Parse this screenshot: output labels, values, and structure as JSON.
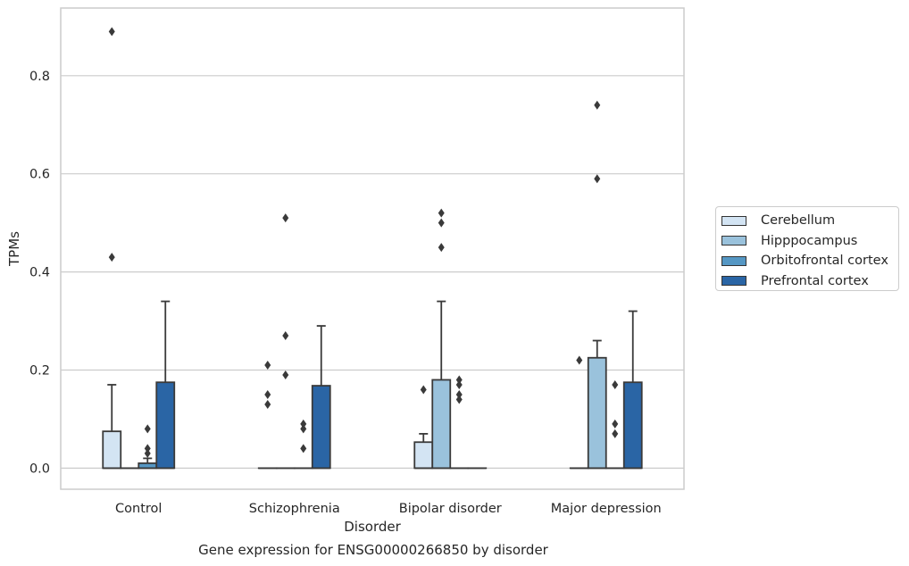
{
  "chart_data": {
    "type": "box",
    "title": "",
    "caption": "Gene expression for ENSG00000266850 by disorder",
    "xlabel": "Disorder",
    "ylabel": "TPMs",
    "ylim": [
      -0.043,
      0.938
    ],
    "yticks": [
      0.0,
      0.2,
      0.4,
      0.6,
      0.8
    ],
    "ytick_labels": [
      "0.0",
      "0.2",
      "0.4",
      "0.6",
      "0.8"
    ],
    "categories": [
      "Control",
      "Schizophrenia",
      "Bipolar disorder",
      "Major depression"
    ],
    "grid": "horizontal",
    "legend_position": "right",
    "series": [
      {
        "name": "Cerebellum",
        "color": "#d3e4f3",
        "boxes": [
          {
            "min": 0,
            "q1": 0,
            "median": 0,
            "q3": 0.075,
            "max": 0.17,
            "outliers": [
              0.43,
              0.89
            ]
          },
          {
            "min": 0,
            "q1": 0,
            "median": 0,
            "q3": 0,
            "max": 0,
            "outliers": [
              0.13,
              0.15,
              0.21
            ]
          },
          {
            "min": 0,
            "q1": 0,
            "median": 0,
            "q3": 0.053,
            "max": 0.07,
            "outliers": [
              0.16
            ]
          },
          {
            "min": 0,
            "q1": 0,
            "median": 0,
            "q3": 0,
            "max": 0,
            "outliers": [
              0.22
            ]
          }
        ]
      },
      {
        "name": "Hipppocampus",
        "color": "#9ac2dc",
        "boxes": [
          {
            "min": 0,
            "q1": 0,
            "median": 0,
            "q3": 0,
            "max": 0,
            "outliers": []
          },
          {
            "min": 0,
            "q1": 0,
            "median": 0,
            "q3": 0,
            "max": 0,
            "outliers": [
              0.19,
              0.27,
              0.51
            ]
          },
          {
            "min": 0,
            "q1": 0,
            "median": 0,
            "q3": 0.18,
            "max": 0.34,
            "outliers": [
              0.45,
              0.5,
              0.52
            ]
          },
          {
            "min": 0,
            "q1": 0,
            "median": 0,
            "q3": 0.225,
            "max": 0.26,
            "outliers": [
              0.59,
              0.74
            ]
          }
        ]
      },
      {
        "name": "Orbitofrontal cortex",
        "color": "#5597c4",
        "boxes": [
          {
            "min": 0,
            "q1": 0,
            "median": 0,
            "q3": 0.01,
            "max": 0.02,
            "outliers": [
              0.03,
              0.04,
              0.08
            ]
          },
          {
            "min": 0,
            "q1": 0,
            "median": 0,
            "q3": 0,
            "max": 0,
            "outliers": [
              0.04,
              0.08,
              0.09
            ]
          },
          {
            "min": 0,
            "q1": 0,
            "median": 0,
            "q3": 0,
            "max": 0,
            "outliers": [
              0.14,
              0.15,
              0.17,
              0.18
            ]
          },
          {
            "min": 0,
            "q1": 0,
            "median": 0,
            "q3": 0,
            "max": 0,
            "outliers": [
              0.07,
              0.09,
              0.17
            ]
          }
        ]
      },
      {
        "name": "Prefrontal cortex",
        "color": "#2a65a5",
        "boxes": [
          {
            "min": 0,
            "q1": 0,
            "median": 0,
            "q3": 0.175,
            "max": 0.34,
            "outliers": []
          },
          {
            "min": 0,
            "q1": 0,
            "median": 0,
            "q3": 0.168,
            "max": 0.29,
            "outliers": []
          },
          {
            "min": 0,
            "q1": 0,
            "median": 0,
            "q3": 0,
            "max": 0,
            "outliers": []
          },
          {
            "min": 0,
            "q1": 0,
            "median": 0,
            "q3": 0.175,
            "max": 0.32,
            "outliers": []
          }
        ]
      }
    ]
  }
}
